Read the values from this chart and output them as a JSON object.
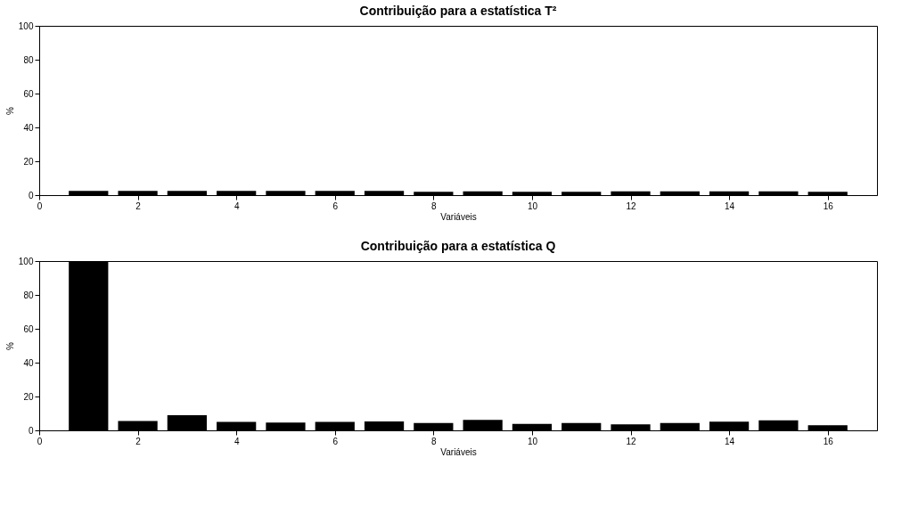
{
  "chart_data": [
    {
      "type": "bar",
      "title": "Contribuição para a estatística T²",
      "xlabel": "Variáveis",
      "ylabel": "%",
      "x": [
        1,
        2,
        3,
        4,
        5,
        6,
        7,
        8,
        9,
        10,
        11,
        12,
        13,
        14,
        15,
        16
      ],
      "values": [
        2.5,
        2.5,
        2.5,
        2.5,
        2.5,
        2.5,
        2.5,
        2,
        2.3,
        2,
        2,
        2.3,
        2.3,
        2.3,
        2.3,
        2
      ],
      "color": "#000000",
      "xlim": [
        0,
        17
      ],
      "xticks": [
        0,
        2,
        4,
        6,
        8,
        10,
        12,
        14,
        16
      ],
      "ylim": [
        0,
        100
      ],
      "yticks": [
        0,
        20,
        40,
        60,
        80,
        100
      ],
      "grid": false
    },
    {
      "type": "bar",
      "title": "Contribuição para a estatística Q",
      "xlabel": "Variáveis",
      "ylabel": "%",
      "x": [
        1,
        2,
        3,
        4,
        5,
        6,
        7,
        8,
        9,
        10,
        11,
        12,
        13,
        14,
        15,
        16
      ],
      "values": [
        100,
        5.5,
        9,
        5,
        4.6,
        5,
        5.3,
        4.3,
        6.2,
        3.8,
        4.3,
        3.5,
        4.3,
        5.1,
        5.9,
        3
      ],
      "color": "#000000",
      "xlim": [
        0,
        17
      ],
      "xticks": [
        0,
        2,
        4,
        6,
        8,
        10,
        12,
        14,
        16
      ],
      "ylim": [
        0,
        100
      ],
      "yticks": [
        0,
        20,
        40,
        60,
        80,
        100
      ],
      "grid": false
    }
  ]
}
